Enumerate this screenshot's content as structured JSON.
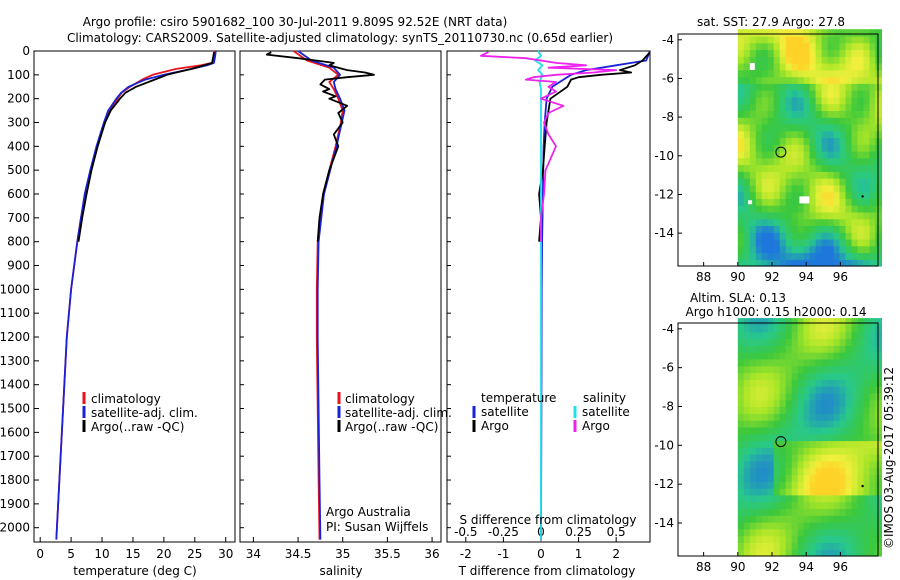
{
  "header": {
    "line1": "Argo profile: csiro 5901682_100 30-Jul-2011 9.809S 92.52E (NRT data)",
    "line2": "Climatology: CARS2009. Satellite-adjusted climatology: synTS_20110730.nc (0.65d earlier)"
  },
  "colors": {
    "climatology": "#e8141c",
    "satellite": "#1a22d8",
    "argo": "#000000",
    "salinity_sat": "#22e0e8",
    "salinity_argo": "#ee22ee"
  },
  "chart_data": [
    {
      "type": "line",
      "name": "temperature-profile",
      "xlabel": "temperature (deg C)",
      "ylabel": "",
      "xlim": [
        -1,
        31.5
      ],
      "ylim": [
        2060,
        0
      ],
      "xticks": [
        0,
        5,
        10,
        15,
        20,
        25,
        30
      ],
      "yticks": [
        0,
        100,
        200,
        300,
        400,
        500,
        600,
        700,
        800,
        900,
        1000,
        1100,
        1200,
        1300,
        1400,
        1500,
        1600,
        1700,
        1800,
        1900,
        2000
      ],
      "legend": [
        "climatology",
        "satellite-adj. clim.",
        "Argo(..raw -QC)"
      ],
      "series": [
        {
          "name": "climatology",
          "color": "#e8141c",
          "depth": [
            0,
            20,
            50,
            60,
            75,
            100,
            120,
            150,
            175,
            200,
            250,
            300,
            400,
            500,
            600,
            700,
            800,
            1000,
            1200,
            1500,
            1800,
            2050
          ],
          "values": [
            28.2,
            28.1,
            27.8,
            26,
            22,
            18.2,
            16.5,
            14.5,
            13.2,
            12.5,
            11.2,
            10.4,
            9.2,
            8.2,
            7.3,
            6.6,
            6.0,
            5.0,
            4.3,
            3.7,
            3.1,
            2.6
          ]
        },
        {
          "name": "satellite-adj. clim.",
          "color": "#1a22d8",
          "depth": [
            0,
            20,
            50,
            60,
            75,
            100,
            120,
            150,
            175,
            200,
            250,
            300,
            400,
            500,
            600,
            700,
            800,
            1000,
            1200,
            1500,
            1800,
            2050
          ],
          "values": [
            28.4,
            28.3,
            28.1,
            27,
            24.5,
            20,
            17,
            14.3,
            13.1,
            12.3,
            11.0,
            10.3,
            9.1,
            8.1,
            7.2,
            6.6,
            6.0,
            5.0,
            4.3,
            3.7,
            3.1,
            2.6
          ]
        },
        {
          "name": "Argo(..raw -QC)",
          "color": "#000000",
          "depth": [
            5,
            20,
            50,
            60,
            75,
            90,
            100,
            120,
            150,
            175,
            200,
            250,
            300,
            400,
            500,
            600,
            700,
            800
          ],
          "values": [
            28.1,
            28.0,
            27.8,
            26.5,
            24.5,
            22,
            20.5,
            18.5,
            15.5,
            13.8,
            12.9,
            11.4,
            10.5,
            9.3,
            8.3,
            7.5,
            6.8,
            6.2
          ]
        }
      ]
    },
    {
      "type": "line",
      "name": "salinity-profile",
      "xlabel": "salinity",
      "ylabel": "",
      "xlim": [
        33.85,
        36.1
      ],
      "ylim": [
        2060,
        0
      ],
      "xticks": [
        34,
        34.5,
        35,
        35.5,
        36
      ],
      "legend": [
        "climatology",
        "satellite-adj. clim.",
        "Argo(..raw -QC)"
      ],
      "annotation": [
        "Argo Australia",
        "PI: Susan Wijffels"
      ],
      "series": [
        {
          "name": "climatology",
          "color": "#e8141c",
          "depth": [
            0,
            40,
            70,
            100,
            130,
            160,
            200,
            250,
            300,
            400,
            500,
            600,
            800,
            1000,
            1200,
            1500,
            1800,
            2050
          ],
          "values": [
            34.45,
            34.6,
            34.85,
            34.95,
            34.85,
            34.9,
            34.95,
            35.0,
            34.98,
            34.92,
            34.85,
            34.78,
            34.72,
            34.71,
            34.71,
            34.72,
            34.73,
            34.74
          ]
        },
        {
          "name": "satellite-adj. clim.",
          "color": "#1a22d8",
          "depth": [
            0,
            40,
            70,
            100,
            130,
            160,
            200,
            250,
            300,
            400,
            500,
            600,
            800,
            1000,
            1200,
            1500,
            1800,
            2050
          ],
          "values": [
            34.5,
            34.65,
            34.9,
            34.97,
            34.9,
            34.92,
            34.97,
            35.02,
            34.99,
            34.93,
            34.86,
            34.79,
            34.73,
            34.72,
            34.72,
            34.73,
            34.74,
            34.75
          ]
        },
        {
          "name": "Argo(..raw -QC)",
          "color": "#000000",
          "depth": [
            5,
            15,
            30,
            40,
            50,
            60,
            70,
            80,
            90,
            100,
            110,
            120,
            140,
            160,
            170,
            190,
            200,
            230,
            260,
            300,
            350,
            400,
            500,
            600,
            700,
            800
          ],
          "values": [
            34.2,
            34.15,
            34.5,
            34.7,
            34.9,
            34.85,
            34.95,
            35.05,
            35.25,
            35.35,
            35.05,
            34.8,
            34.75,
            34.85,
            34.78,
            34.92,
            34.85,
            35.05,
            34.95,
            35.0,
            34.9,
            34.95,
            34.85,
            34.78,
            34.74,
            34.72
          ]
        }
      ]
    },
    {
      "type": "line",
      "name": "difference-profile",
      "xlabel": "T difference from climatology",
      "xlabel_top": "S difference from climatology",
      "ylabel": "",
      "xlim": [
        -2.5,
        2.9
      ],
      "ylim": [
        2060,
        0
      ],
      "xticks": [
        -2,
        -1,
        0,
        1,
        2
      ],
      "s_ticks": [
        -0.5,
        -0.25,
        0,
        0.25,
        0.5
      ],
      "legend_title_t": "temperature",
      "legend_title_s": "salinity",
      "legend": [
        "satellite",
        "Argo",
        "satellite",
        "Argo"
      ],
      "series": [
        {
          "name": "temperature satellite",
          "color": "#1a22d8",
          "depth": [
            0,
            40,
            60,
            80,
            100,
            150,
            200,
            300,
            400,
            600,
            800,
            1000,
            1500,
            2050
          ],
          "values": [
            2.9,
            2.8,
            2.0,
            1.2,
            0.8,
            0.3,
            0.15,
            0.1,
            0.07,
            0.05,
            0.03,
            0.02,
            0.01,
            0.0
          ]
        },
        {
          "name": "temperature Argo",
          "color": "#000000",
          "depth": [
            5,
            40,
            60,
            70,
            80,
            90,
            100,
            110,
            120,
            150,
            200,
            300,
            400,
            500,
            600,
            700,
            800
          ],
          "values": [
            2.9,
            2.7,
            2.5,
            2.3,
            2.1,
            2.4,
            1.6,
            1.0,
            0.8,
            0.7,
            0.25,
            0.15,
            0.1,
            0.05,
            -0.05,
            0.0,
            -0.05
          ]
        },
        {
          "name": "salinity satellite",
          "color": "#22e0e8",
          "depth": [
            0,
            20,
            40,
            60,
            80,
            100,
            130,
            160,
            200,
            300,
            500,
            700,
            1000,
            1500,
            2050
          ],
          "values": [
            -0.02,
            0.0,
            -0.04,
            0.01,
            -0.02,
            0.01,
            -0.01,
            0.0,
            0.0,
            0.0,
            0.0,
            0.0,
            0.0,
            0.0,
            0.0
          ]
        },
        {
          "name": "salinity Argo",
          "color": "#ee22ee",
          "depth": [
            5,
            20,
            30,
            50,
            60,
            70,
            80,
            90,
            100,
            110,
            120,
            130,
            150,
            170,
            200,
            230,
            260,
            300,
            350,
            400,
            500,
            600,
            700,
            800
          ],
          "values": [
            -0.35,
            -0.4,
            -0.1,
            0.1,
            0.3,
            0.05,
            0.5,
            0.35,
            0.1,
            -0.05,
            -0.1,
            0.1,
            0.05,
            0.1,
            0.0,
            0.15,
            0.05,
            0.02,
            0.05,
            0.1,
            0.03,
            0.02,
            0.0,
            0.0
          ]
        }
      ]
    },
    {
      "type": "heatmap",
      "name": "sst-map",
      "title": "sat. SST: 27.9 Argo: 27.8",
      "xlim": [
        86.5,
        98.2
      ],
      "ylim": [
        -15.7,
        -3.7
      ],
      "xticks": [
        88,
        90,
        92,
        94,
        96
      ],
      "yticks": [
        -4,
        -6,
        -8,
        -10,
        -12,
        -14
      ],
      "marker": [
        92.52,
        -9.809
      ]
    },
    {
      "type": "heatmap",
      "name": "sla-map",
      "title_line1": "Altim. SLA: 0.13",
      "title_line2": "Argo h1000: 0.15 h2000: 0.14",
      "xlim": [
        86.5,
        98.2
      ],
      "ylim": [
        -15.7,
        -3.7
      ],
      "xticks": [
        88,
        90,
        92,
        94,
        96
      ],
      "yticks": [
        -4,
        -6,
        -8,
        -10,
        -12,
        -14
      ],
      "marker": [
        92.52,
        -9.809
      ]
    }
  ],
  "watermark": "©IMOS 03-Aug-2017 05:39:12"
}
